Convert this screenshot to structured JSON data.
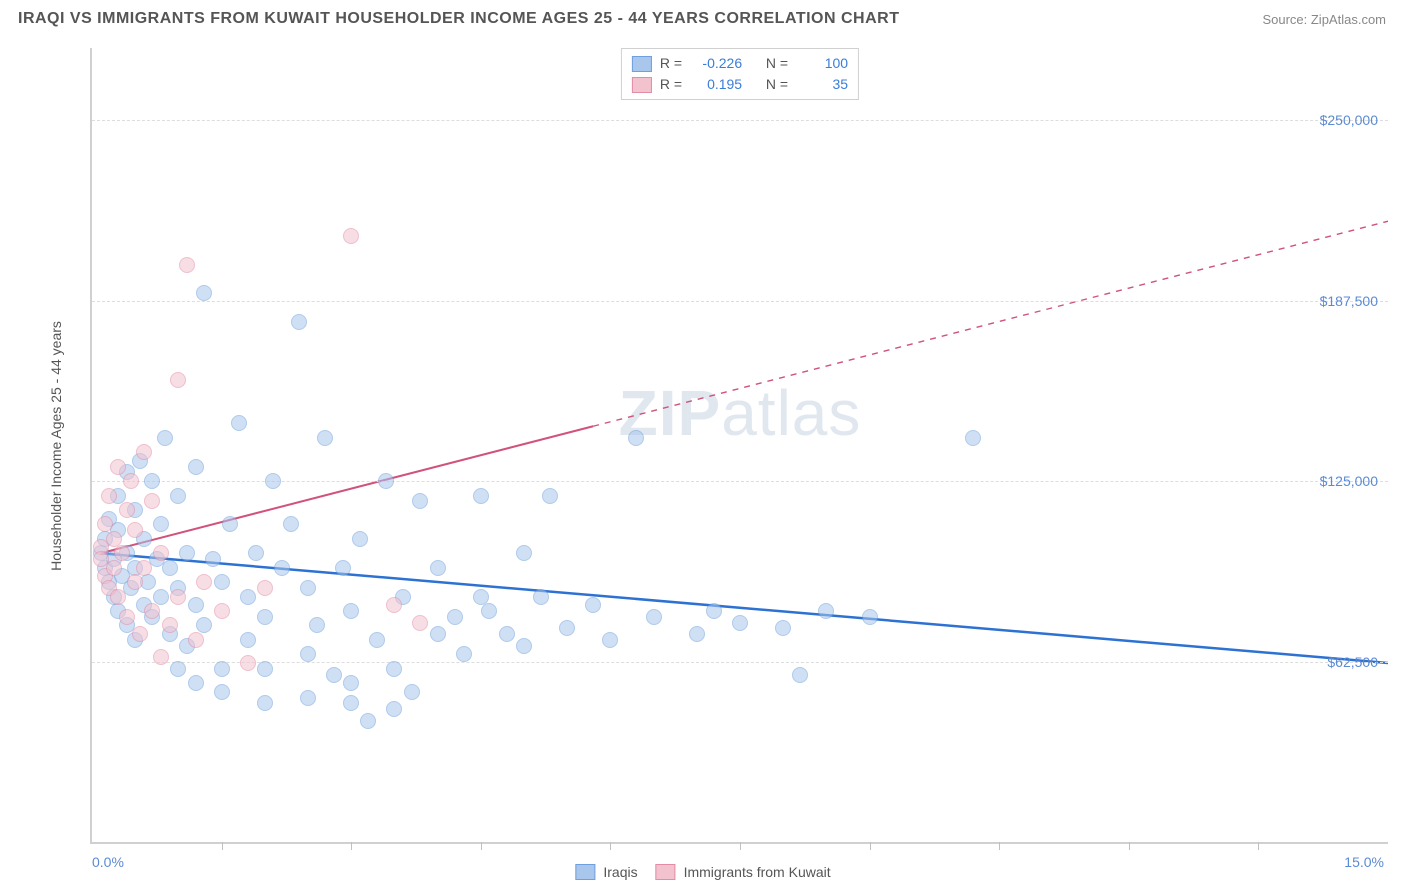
{
  "title": "IRAQI VS IMMIGRANTS FROM KUWAIT HOUSEHOLDER INCOME AGES 25 - 44 YEARS CORRELATION CHART",
  "source": "Source: ZipAtlas.com",
  "ylabel": "Householder Income Ages 25 - 44 years",
  "watermark_a": "ZIP",
  "watermark_b": "atlas",
  "chart": {
    "type": "scatter",
    "xlim": [
      0,
      15
    ],
    "ylim": [
      0,
      275000
    ],
    "xticks_minor": [
      1.5,
      3.0,
      4.5,
      6.0,
      7.5,
      9.0,
      10.5,
      12.0,
      13.5
    ],
    "xtick_labels": [
      {
        "x": 0,
        "label": "0.0%",
        "align": "left"
      },
      {
        "x": 15,
        "label": "15.0%",
        "align": "right"
      }
    ],
    "ytick_labels": [
      {
        "y": 62500,
        "label": "$62,500"
      },
      {
        "y": 125000,
        "label": "$125,000"
      },
      {
        "y": 187500,
        "label": "$187,500"
      },
      {
        "y": 250000,
        "label": "$250,000"
      }
    ],
    "grid_color": "#dddddd",
    "background": "#ffffff",
    "point_radius": 8,
    "point_opacity": 0.55,
    "series": [
      {
        "name": "Iraqis",
        "color_fill": "#a9c6ec",
        "color_stroke": "#6fa0dd",
        "R": "-0.226",
        "N": "100",
        "trend": {
          "x1": 0.1,
          "y1": 100000,
          "x2": 15,
          "y2": 62000,
          "solid_until_x": 15,
          "color": "#2d72d2",
          "width": 2.5
        },
        "points": [
          [
            0.1,
            100000
          ],
          [
            0.15,
            95000
          ],
          [
            0.15,
            105000
          ],
          [
            0.2,
            90000
          ],
          [
            0.2,
            112000
          ],
          [
            0.25,
            85000
          ],
          [
            0.25,
            98000
          ],
          [
            0.3,
            80000
          ],
          [
            0.3,
            108000
          ],
          [
            0.3,
            120000
          ],
          [
            0.35,
            92000
          ],
          [
            0.4,
            75000
          ],
          [
            0.4,
            100000
          ],
          [
            0.4,
            128000
          ],
          [
            0.45,
            88000
          ],
          [
            0.5,
            70000
          ],
          [
            0.5,
            95000
          ],
          [
            0.5,
            115000
          ],
          [
            0.55,
            132000
          ],
          [
            0.6,
            82000
          ],
          [
            0.6,
            105000
          ],
          [
            0.65,
            90000
          ],
          [
            0.7,
            125000
          ],
          [
            0.7,
            78000
          ],
          [
            0.75,
            98000
          ],
          [
            0.8,
            110000
          ],
          [
            0.8,
            85000
          ],
          [
            0.85,
            140000
          ],
          [
            0.9,
            72000
          ],
          [
            0.9,
            95000
          ],
          [
            1.0,
            88000
          ],
          [
            1.0,
            120000
          ],
          [
            1.1,
            100000
          ],
          [
            1.1,
            68000
          ],
          [
            1.2,
            82000
          ],
          [
            1.2,
            130000
          ],
          [
            1.3,
            190000
          ],
          [
            1.3,
            75000
          ],
          [
            1.4,
            98000
          ],
          [
            1.5,
            60000
          ],
          [
            1.5,
            90000
          ],
          [
            1.6,
            110000
          ],
          [
            1.7,
            145000
          ],
          [
            1.8,
            70000
          ],
          [
            1.8,
            85000
          ],
          [
            1.9,
            100000
          ],
          [
            2.0,
            60000
          ],
          [
            2.0,
            78000
          ],
          [
            2.1,
            125000
          ],
          [
            2.2,
            95000
          ],
          [
            2.3,
            110000
          ],
          [
            2.4,
            180000
          ],
          [
            2.5,
            65000
          ],
          [
            2.5,
            88000
          ],
          [
            2.6,
            75000
          ],
          [
            2.7,
            140000
          ],
          [
            2.8,
            58000
          ],
          [
            2.9,
            95000
          ],
          [
            3.0,
            80000
          ],
          [
            3.0,
            55000
          ],
          [
            3.1,
            105000
          ],
          [
            3.2,
            42000
          ],
          [
            3.3,
            70000
          ],
          [
            3.4,
            125000
          ],
          [
            3.5,
            60000
          ],
          [
            3.6,
            85000
          ],
          [
            3.7,
            52000
          ],
          [
            3.8,
            118000
          ],
          [
            4.0,
            72000
          ],
          [
            4.0,
            95000
          ],
          [
            4.2,
            78000
          ],
          [
            4.3,
            65000
          ],
          [
            4.5,
            120000
          ],
          [
            4.5,
            85000
          ],
          [
            4.6,
            80000
          ],
          [
            4.8,
            72000
          ],
          [
            5.0,
            100000
          ],
          [
            5.0,
            68000
          ],
          [
            5.2,
            85000
          ],
          [
            5.3,
            120000
          ],
          [
            5.5,
            74000
          ],
          [
            5.8,
            82000
          ],
          [
            6.0,
            70000
          ],
          [
            6.3,
            140000
          ],
          [
            6.5,
            78000
          ],
          [
            7.0,
            72000
          ],
          [
            7.2,
            80000
          ],
          [
            7.5,
            76000
          ],
          [
            8.0,
            74000
          ],
          [
            8.2,
            58000
          ],
          [
            8.5,
            80000
          ],
          [
            9.0,
            78000
          ],
          [
            10.2,
            140000
          ],
          [
            1.0,
            60000
          ],
          [
            1.2,
            55000
          ],
          [
            1.5,
            52000
          ],
          [
            2.0,
            48000
          ],
          [
            2.5,
            50000
          ],
          [
            3.0,
            48000
          ],
          [
            3.5,
            46000
          ]
        ]
      },
      {
        "name": "Immigrants from Kuwait",
        "color_fill": "#f2c2cf",
        "color_stroke": "#e48ba5",
        "R": "0.195",
        "N": "35",
        "trend": {
          "x1": 0.1,
          "y1": 100000,
          "x2": 15,
          "y2": 215000,
          "solid_until_x": 5.8,
          "color": "#d1527a",
          "width": 2
        },
        "points": [
          [
            0.1,
            102000
          ],
          [
            0.1,
            98000
          ],
          [
            0.15,
            110000
          ],
          [
            0.15,
            92000
          ],
          [
            0.2,
            120000
          ],
          [
            0.2,
            88000
          ],
          [
            0.25,
            105000
          ],
          [
            0.25,
            95000
          ],
          [
            0.3,
            130000
          ],
          [
            0.3,
            85000
          ],
          [
            0.35,
            100000
          ],
          [
            0.4,
            115000
          ],
          [
            0.4,
            78000
          ],
          [
            0.45,
            125000
          ],
          [
            0.5,
            90000
          ],
          [
            0.5,
            108000
          ],
          [
            0.55,
            72000
          ],
          [
            0.6,
            135000
          ],
          [
            0.6,
            95000
          ],
          [
            0.7,
            80000
          ],
          [
            0.7,
            118000
          ],
          [
            0.8,
            64000
          ],
          [
            0.8,
            100000
          ],
          [
            0.9,
            75000
          ],
          [
            1.0,
            160000
          ],
          [
            1.0,
            85000
          ],
          [
            1.1,
            200000
          ],
          [
            1.2,
            70000
          ],
          [
            1.3,
            90000
          ],
          [
            1.5,
            80000
          ],
          [
            1.8,
            62000
          ],
          [
            2.0,
            88000
          ],
          [
            3.0,
            210000
          ],
          [
            3.5,
            82000
          ],
          [
            3.8,
            76000
          ]
        ]
      }
    ]
  },
  "stat_legend_labels": {
    "R": "R =",
    "N": "N ="
  },
  "bottom_legend": [
    {
      "label": "Iraqis",
      "fill": "#a9c6ec",
      "stroke": "#6fa0dd"
    },
    {
      "label": "Immigrants from Kuwait",
      "fill": "#f2c2cf",
      "stroke": "#e48ba5"
    }
  ]
}
